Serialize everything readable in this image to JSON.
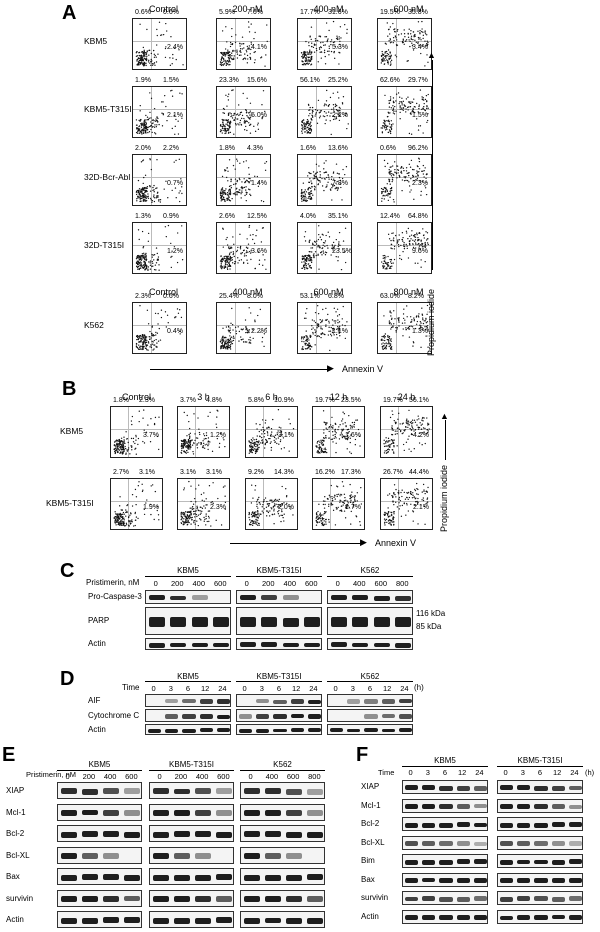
{
  "panels": {
    "A": "A",
    "B": "B",
    "C": "C",
    "D": "D",
    "E": "E",
    "F": "F"
  },
  "panelA": {
    "headers": [
      "Control",
      "200 nM",
      "400 nM",
      "600 nM"
    ],
    "rows": [
      {
        "label": "KBM5",
        "cells": [
          [
            "0.6%",
            "0.6%",
            "2.4%"
          ],
          [
            "5.9%",
            "7.6%",
            "4.1%"
          ],
          [
            "17.7%",
            "31.6%",
            "5.3%"
          ],
          [
            "19.5%",
            "35.8%",
            "3.4%"
          ]
        ]
      },
      {
        "label": "KBM5-T315I",
        "cells": [
          [
            "1.9%",
            "1.5%",
            "2.1%"
          ],
          [
            "23.3%",
            "15.6%",
            "5.0%"
          ],
          [
            "56.1%",
            "25.2%",
            "2.2%"
          ],
          [
            "62.6%",
            "29.7%",
            "1.5%"
          ]
        ]
      },
      {
        "label": "32D-Bcr-Abl",
        "cells": [
          [
            "2.0%",
            "2.2%",
            "0.7%"
          ],
          [
            "1.8%",
            "4.3%",
            "1.4%"
          ],
          [
            "1.6%",
            "13.6%",
            "7.8%"
          ],
          [
            "0.6%",
            "96.2%",
            "2.3%"
          ]
        ]
      },
      {
        "label": "32D-T315I",
        "cells": [
          [
            "1.3%",
            "0.9%",
            "1.2%"
          ],
          [
            "2.6%",
            "12.5%",
            "3.6%"
          ],
          [
            "4.0%",
            "35.1%",
            "23.5%"
          ],
          [
            "12.4%",
            "64.8%",
            "9.6%"
          ]
        ]
      }
    ],
    "k562_headers": [
      "Control",
      "400 nM",
      "600 nM",
      "800 nM"
    ],
    "k562": {
      "label": "K562",
      "cells": [
        [
          "2.3%",
          "0.6%",
          "0.4%"
        ],
        [
          "25.4%",
          "8.0%",
          "2.2%"
        ],
        [
          "53.1%",
          "6.8%",
          "1.1%"
        ],
        [
          "63.0%",
          "8.2%",
          "1.3%"
        ]
      ]
    },
    "xaxis": "Annexin V",
    "yaxis": "Propidium iodide"
  },
  "panelB": {
    "headers": [
      "Control",
      "3 h",
      "6 h",
      "12 h",
      "24 h"
    ],
    "rows": [
      {
        "label": "KBM5",
        "cells": [
          [
            "1.8%",
            "2.3%",
            "3.7%"
          ],
          [
            "3.7%",
            "4.8%",
            "1.2%"
          ],
          [
            "5.8%",
            "10.9%",
            "3.1%"
          ],
          [
            "19.7%",
            "23.5%",
            "1.6%"
          ],
          [
            "19.7%",
            "56.1%",
            "4.2%"
          ]
        ]
      },
      {
        "label": "KBM5-T315I",
        "cells": [
          [
            "2.7%",
            "3.1%",
            "1.9%"
          ],
          [
            "3.1%",
            "3.1%",
            "2.3%"
          ],
          [
            "9.2%",
            "14.3%",
            "2.0%"
          ],
          [
            "16.2%",
            "17.3%",
            "1.7%"
          ],
          [
            "26.7%",
            "44.4%",
            "2.1%"
          ]
        ]
      }
    ],
    "xaxis": "Annexin V",
    "yaxis": "Propidium iodide"
  },
  "panelC": {
    "groups": [
      "KBM5",
      "KBM5-T315I",
      "K562"
    ],
    "treatment": "Pristimerin, nM",
    "lanes": [
      [
        "0",
        "200",
        "400",
        "600"
      ],
      [
        "0",
        "200",
        "400",
        "600"
      ],
      [
        "0",
        "400",
        "600",
        "800"
      ]
    ],
    "proteins": [
      "Pro-Caspase-3",
      "PARP",
      "Actin"
    ],
    "markers": [
      "116 kDa",
      "85  kDa"
    ]
  },
  "panelD": {
    "groups": [
      "KBM5",
      "KBM5-T315I",
      "K562"
    ],
    "treatment": "Time",
    "unit": "(h)",
    "lanes": [
      "0",
      "3",
      "6",
      "12",
      "24"
    ],
    "proteins": [
      "AIF",
      "Cytochrome C",
      "Actin"
    ]
  },
  "panelE": {
    "groups": [
      "KBM5",
      "KBM5-T315I",
      "K562"
    ],
    "treatment": "Pristimerin, nM",
    "lanes": [
      [
        "0",
        "200",
        "400",
        "600"
      ],
      [
        "0",
        "200",
        "400",
        "600"
      ],
      [
        "0",
        "400",
        "600",
        "800"
      ]
    ],
    "proteins": [
      "XIAP",
      "Mcl-1",
      "Bcl-2",
      "Bcl-XL",
      "Bax",
      "survivin",
      "Actin"
    ]
  },
  "panelF": {
    "groups": [
      "KBM5",
      "KBM5-T315I"
    ],
    "treatment": "Time",
    "unit": "(h)",
    "lanes": [
      "0",
      "3",
      "6",
      "12",
      "24"
    ],
    "proteins": [
      "XIAP",
      "Mcl-1",
      "Bcl-2",
      "Bcl-XL",
      "Bim",
      "Bax",
      "survivin",
      "Actin"
    ]
  }
}
